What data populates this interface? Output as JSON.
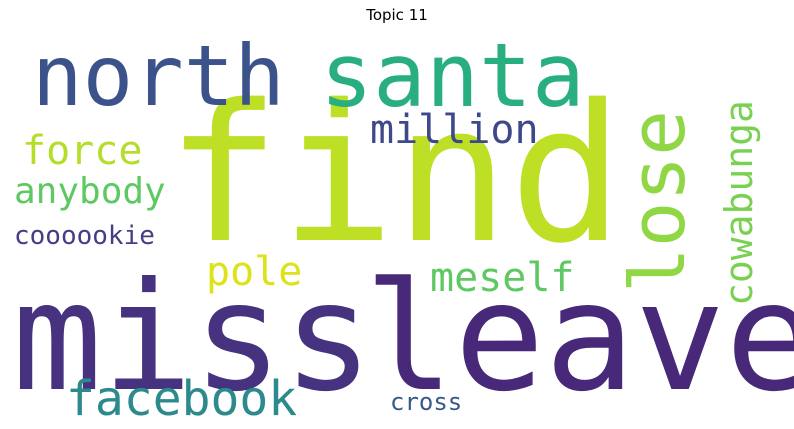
{
  "title": "Topic 11",
  "words": {
    "find": {
      "text": "find",
      "color": "#bddf26"
    },
    "miss": {
      "text": "miss",
      "color": "#46327e"
    },
    "leave": {
      "text": "leave",
      "color": "#482878"
    },
    "santa": {
      "text": "santa",
      "color": "#29af7f"
    },
    "north": {
      "text": "north",
      "color": "#3b528b"
    },
    "lose": {
      "text": "lose",
      "color": "#8fd744"
    },
    "cowabunga": {
      "text": "cowabunga",
      "color": "#7ad151"
    },
    "million": {
      "text": "million",
      "color": "#3e4989"
    },
    "force": {
      "text": "force",
      "color": "#b5de2b"
    },
    "anybody": {
      "text": "anybody",
      "color": "#5ec962"
    },
    "coooookie": {
      "text": "coooookie",
      "color": "#433e85"
    },
    "pole": {
      "text": "pole",
      "color": "#dde318"
    },
    "meself": {
      "text": "meself",
      "color": "#5ec962"
    },
    "facebook": {
      "text": "facebook",
      "color": "#2c8a8c"
    },
    "cross": {
      "text": "cross",
      "color": "#38598c"
    }
  }
}
